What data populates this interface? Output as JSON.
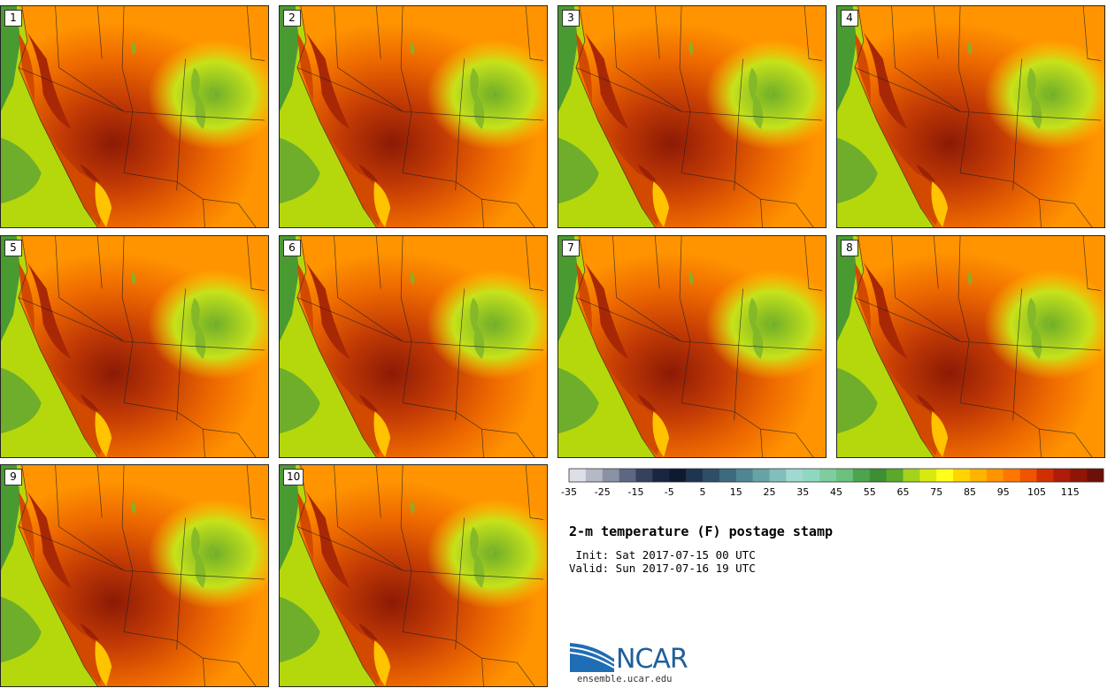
{
  "title": "2-m temperature (F) postage stamp",
  "init": " Init: Sat 2017-07-15 00 UTC",
  "valid": "Valid: Sun 2017-07-16 19 UTC",
  "members": [
    "1",
    "2",
    "3",
    "4",
    "5",
    "6",
    "7",
    "8",
    "9",
    "10"
  ],
  "colorbar": {
    "tick_labels": [
      "-35",
      "-25",
      "-15",
      "-5",
      "5",
      "15",
      "25",
      "35",
      "45",
      "55",
      "65",
      "75",
      "85",
      "95",
      "105",
      "115"
    ],
    "colors": [
      "#dcdfe6",
      "#b4b9c6",
      "#8a92a6",
      "#5e6782",
      "#36415e",
      "#1a2540",
      "#0e1a30",
      "#1d3550",
      "#2d4e66",
      "#3d6a7c",
      "#4f8691",
      "#66a3a6",
      "#82bebb",
      "#9fd9cf",
      "#8ed8c0",
      "#7fcc9e",
      "#6cc07e",
      "#4ea44a",
      "#3e8f32",
      "#5ba82b",
      "#a3d31a",
      "#d6ea12",
      "#ffff1a",
      "#ffd400",
      "#ffb400",
      "#ff9400",
      "#ff7700",
      "#f05400",
      "#d03000",
      "#b01c0a",
      "#901505",
      "#6e1008"
    ]
  },
  "logo": {
    "text": "NCAR",
    "url": "ensemble.ucar.edu"
  }
}
